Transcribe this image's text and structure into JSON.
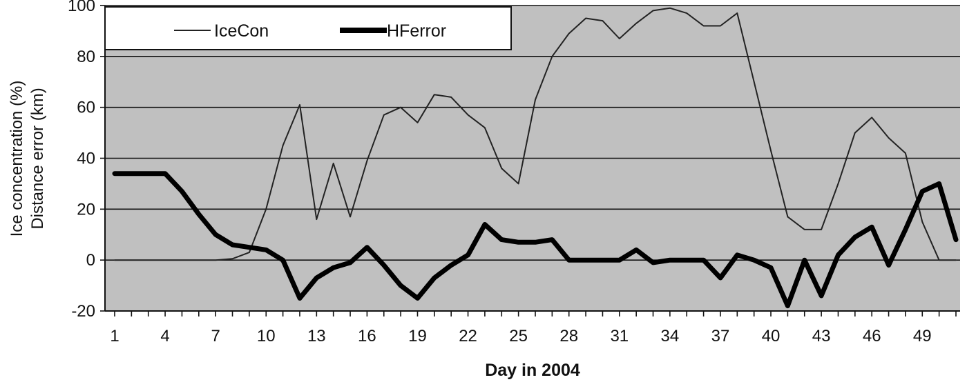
{
  "chart_data": {
    "type": "line",
    "xlabel": "Day in 2004",
    "ylabel_lines": [
      "Ice concentration (%)",
      "Distance error (km)"
    ],
    "ylim": [
      -20,
      100
    ],
    "yticks": [
      -20,
      0,
      20,
      40,
      60,
      80,
      100
    ],
    "xlim": [
      1,
      51
    ],
    "xticks": [
      1,
      4,
      7,
      10,
      13,
      16,
      19,
      22,
      25,
      28,
      31,
      34,
      37,
      40,
      43,
      46,
      49
    ],
    "grid": true,
    "legend": "top-left",
    "background_color": "#c0c0c0",
    "series": [
      {
        "name": "IceCon",
        "color": "#222222",
        "width": "thin",
        "x": [
          1,
          2,
          3,
          4,
          5,
          6,
          7,
          8,
          9,
          10,
          11,
          12,
          13,
          14,
          15,
          16,
          17,
          18,
          19,
          20,
          21,
          22,
          23,
          24,
          25,
          26,
          27,
          28,
          29,
          30,
          31,
          32,
          33,
          34,
          35,
          36,
          37,
          38,
          39,
          40,
          41,
          42,
          43,
          44,
          45,
          46,
          47,
          48,
          49,
          50,
          51
        ],
        "y": [
          0,
          0,
          0,
          0,
          0,
          0,
          0,
          0.5,
          3,
          20,
          45,
          61,
          16,
          38,
          17,
          39,
          57,
          60,
          54,
          65,
          64,
          57,
          52,
          36,
          30,
          63,
          80,
          89,
          95,
          94,
          87,
          93,
          98,
          99,
          97,
          92,
          92,
          97,
          70,
          43,
          17,
          12,
          12,
          30,
          50,
          56,
          48,
          42,
          15,
          0,
          0
        ]
      },
      {
        "name": "HFerror",
        "color": "#000000",
        "width": "thick",
        "x": [
          1,
          2,
          3,
          4,
          5,
          6,
          7,
          8,
          9,
          10,
          11,
          12,
          13,
          14,
          15,
          16,
          17,
          18,
          19,
          20,
          21,
          22,
          23,
          24,
          25,
          26,
          27,
          28,
          29,
          30,
          31,
          32,
          33,
          34,
          35,
          36,
          37,
          38,
          39,
          40,
          41,
          42,
          43,
          44,
          45,
          46,
          47,
          48,
          49,
          50,
          51
        ],
        "y": [
          34,
          34,
          34,
          34,
          27,
          18,
          10,
          6,
          5,
          4,
          0,
          -15,
          -7,
          -3,
          -1,
          5,
          -2,
          -10,
          -15,
          -7,
          -2,
          2,
          14,
          8,
          7,
          7,
          8,
          0,
          0,
          0,
          0,
          4,
          -1,
          0,
          0,
          0,
          -7,
          2,
          0,
          -3,
          -18,
          0,
          -14,
          2,
          9,
          13,
          -2,
          12,
          27,
          30,
          8
        ]
      }
    ]
  }
}
